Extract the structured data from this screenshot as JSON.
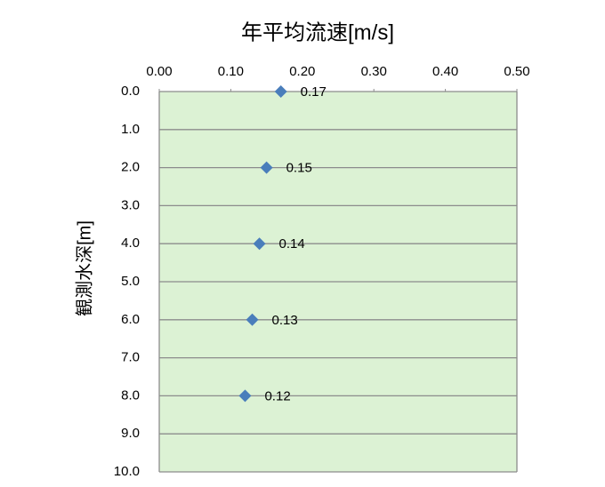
{
  "chart_data": {
    "type": "scatter",
    "title": "年平均流速[m/s]",
    "ylabel": "観測水深[m]",
    "x": [
      0.17,
      0.15,
      0.14,
      0.13,
      0.12
    ],
    "values": [
      0,
      2,
      4,
      6,
      8
    ],
    "color": "#4a7ebb",
    "plot_background": "#dcf2d4",
    "grid": true,
    "x_axis_position": "top",
    "y_reversed": true,
    "xlim": [
      0,
      0.5
    ],
    "xticks": [
      {
        "value": 0,
        "label": "0.00"
      },
      {
        "value": 0.1,
        "label": "0.10"
      },
      {
        "value": 0.2,
        "label": "0.20"
      },
      {
        "value": 0.3,
        "label": "0.30"
      },
      {
        "value": 0.4,
        "label": "0.40"
      },
      {
        "value": 0.5,
        "label": "0.50"
      }
    ],
    "ylim": [
      0,
      10
    ],
    "yticks": [
      {
        "value": 0,
        "label": "0.0"
      },
      {
        "value": 1,
        "label": "1.0"
      },
      {
        "value": 2,
        "label": "2.0"
      },
      {
        "value": 3,
        "label": "3.0"
      },
      {
        "value": 4,
        "label": "4.0"
      },
      {
        "value": 5,
        "label": "5.0"
      },
      {
        "value": 6,
        "label": "6.0"
      },
      {
        "value": 7,
        "label": "7.0"
      },
      {
        "value": 8,
        "label": "8.0"
      },
      {
        "value": 9,
        "label": "9.0"
      },
      {
        "value": 10,
        "label": "10.0"
      }
    ]
  }
}
